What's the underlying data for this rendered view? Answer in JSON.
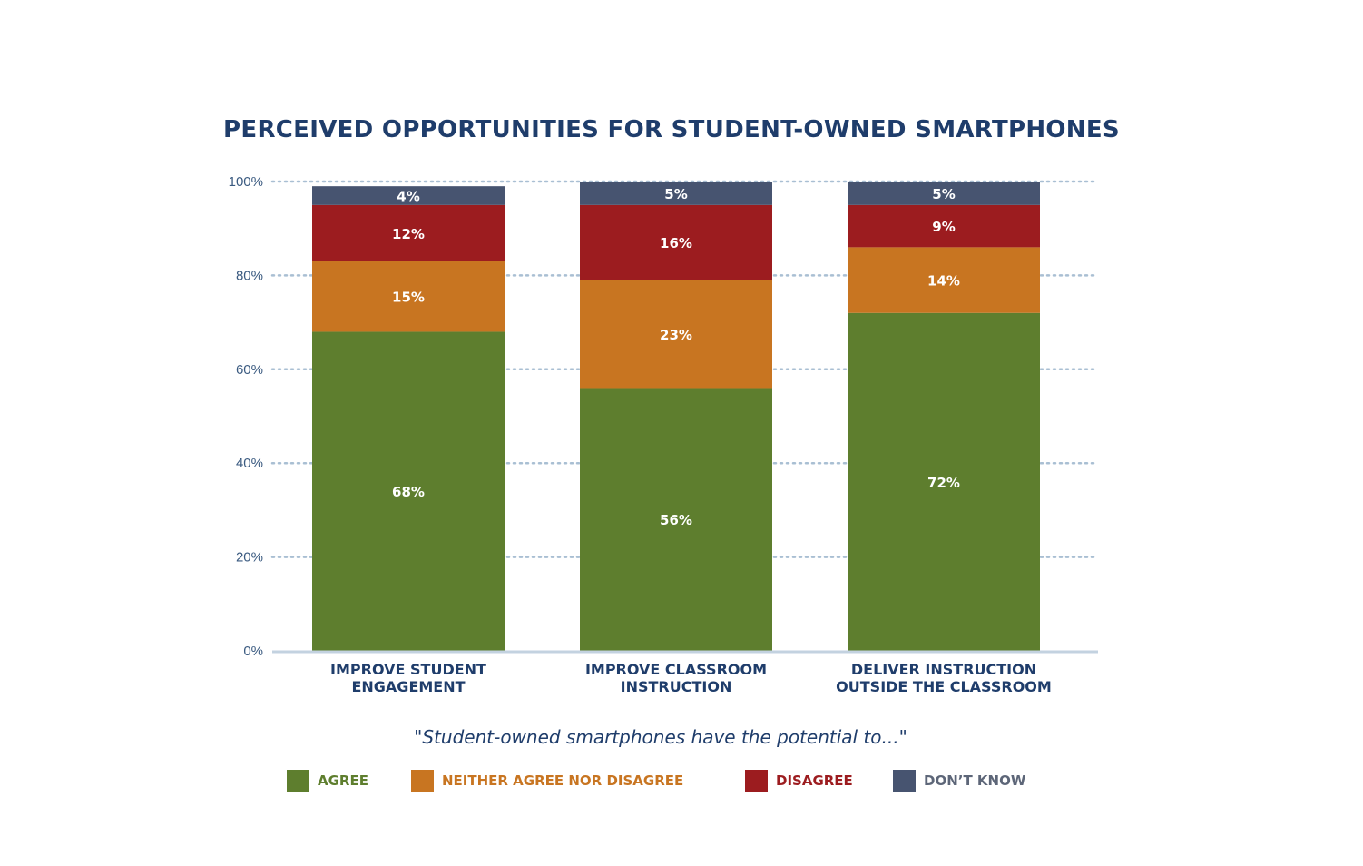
{
  "chart_data": {
    "type": "bar",
    "stacked": true,
    "title": "PERCEIVED OPPORTUNITIES FOR STUDENT-OWNED SMARTPHONES",
    "subtitle": "\"Student-owned smartphones have the potential to...\"",
    "categories": [
      [
        "IMPROVE STUDENT",
        "ENGAGEMENT"
      ],
      [
        "IMPROVE CLASSROOM",
        "INSTRUCTION"
      ],
      [
        "DELIVER INSTRUCTION",
        "OUTSIDE THE CLASSROOM"
      ]
    ],
    "series": [
      {
        "name": "AGREE",
        "color": "#5e7e2e",
        "values": [
          68,
          56,
          72
        ]
      },
      {
        "name": "NEITHER AGREE NOR DISAGREE",
        "color": "#c87521",
        "values": [
          15,
          23,
          14
        ]
      },
      {
        "name": "DISAGREE",
        "color": "#9c1c1f",
        "values": [
          12,
          16,
          9
        ]
      },
      {
        "name": "DON’T KNOW",
        "color": "#475470",
        "values": [
          4,
          5,
          5
        ]
      }
    ],
    "ylim": [
      0,
      100
    ],
    "yticks": [
      "0%",
      "20%",
      "40%",
      "60%",
      "80%",
      "100%"
    ],
    "grid": true,
    "legend_position": "bottom"
  }
}
